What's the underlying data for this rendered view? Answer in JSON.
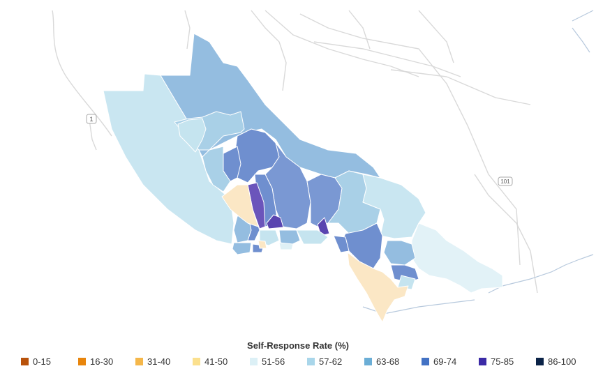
{
  "map": {
    "highway_labels": [
      "1",
      "101"
    ]
  },
  "legend": {
    "title": "Self-Response Rate (%)",
    "items": [
      {
        "label": "0-15",
        "color": "#b8520b"
      },
      {
        "label": "16-30",
        "color": "#e8850c"
      },
      {
        "label": "31-40",
        "color": "#f5b74a"
      },
      {
        "label": "41-50",
        "color": "#fbe08e"
      },
      {
        "label": "51-56",
        "color": "#dcf0f6"
      },
      {
        "label": "57-62",
        "color": "#a9d6ea"
      },
      {
        "label": "63-68",
        "color": "#6baed6"
      },
      {
        "label": "69-74",
        "color": "#4372c4"
      },
      {
        "label": "75-85",
        "color": "#3b2aa6"
      },
      {
        "label": "86-100",
        "color": "#0b2347"
      }
    ]
  },
  "colors": {
    "c5156": "#dff0f5",
    "c5762": "#c5e4ef",
    "c5762b": "#a9d0e7",
    "c6368": "#94bde0",
    "c6974": "#6f8fcf",
    "c7585": "#6b55bb",
    "c4150": "#fbe7c5"
  }
}
